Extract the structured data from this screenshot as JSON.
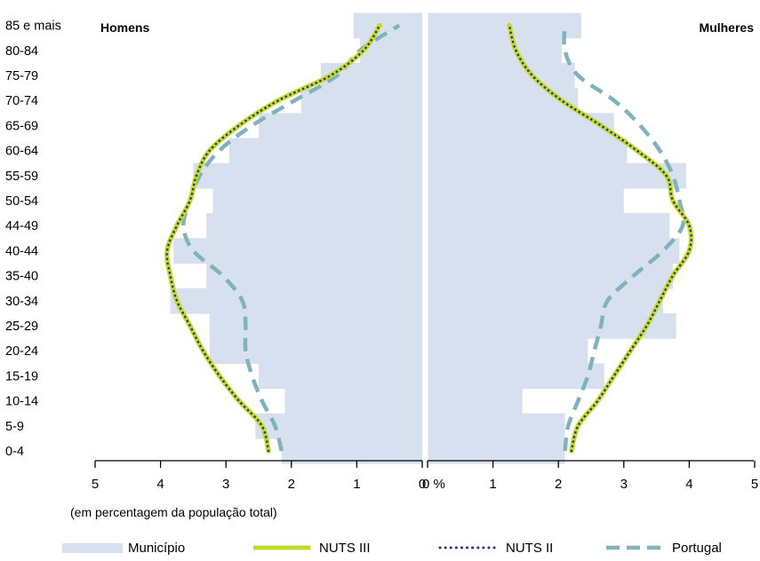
{
  "chart_data": {
    "type": "population-pyramid",
    "left_title": "Homens",
    "right_title": "Mulheres",
    "xlabel": "(em percentagem da população total)",
    "x_ticks_left": [
      "5",
      "4",
      "3",
      "2",
      "1",
      "0"
    ],
    "x_ticks_right": [
      "0 %",
      "1",
      "2",
      "3",
      "4",
      "5"
    ],
    "xlim": [
      0,
      5
    ],
    "categories": [
      "0-4",
      "5-9",
      "10-14",
      "15-19",
      "20-24",
      "25-29",
      "30-34",
      "35-40",
      "40-44",
      "44-49",
      "50-54",
      "55-59",
      "60-64",
      "65-69",
      "70-74",
      "75-79",
      "80-84",
      "85 e mais"
    ],
    "series": [
      {
        "name": "Município",
        "style": "bars",
        "color": "#d6e0ee",
        "men": [
          2.15,
          2.55,
          2.1,
          2.5,
          3.25,
          3.25,
          3.85,
          3.3,
          3.8,
          3.3,
          3.2,
          3.5,
          2.95,
          2.5,
          1.85,
          1.55,
          0.95,
          1.05
        ],
        "women": [
          2.1,
          2.1,
          1.45,
          2.7,
          2.45,
          3.8,
          3.6,
          3.75,
          3.85,
          3.7,
          3.0,
          3.95,
          3.05,
          2.85,
          2.3,
          2.25,
          2.05,
          2.35
        ]
      },
      {
        "name": "NUTS III",
        "style": "solid",
        "color": "#c6d82b",
        "men": [
          2.35,
          2.45,
          2.8,
          3.1,
          3.35,
          3.55,
          3.75,
          3.85,
          3.9,
          3.75,
          3.55,
          3.45,
          3.25,
          2.8,
          2.2,
          1.4,
          0.9,
          0.65
        ],
        "women": [
          2.2,
          2.3,
          2.6,
          2.85,
          3.1,
          3.35,
          3.55,
          3.75,
          4.0,
          4.0,
          3.75,
          3.65,
          3.2,
          2.65,
          2.05,
          1.6,
          1.35,
          1.25
        ]
      },
      {
        "name": "NUTS II",
        "style": "dotted",
        "color": "#1f3a78",
        "men": [
          2.35,
          2.45,
          2.8,
          3.1,
          3.35,
          3.55,
          3.75,
          3.85,
          3.9,
          3.75,
          3.55,
          3.45,
          3.25,
          2.8,
          2.2,
          1.4,
          0.9,
          0.65
        ],
        "women": [
          2.2,
          2.3,
          2.6,
          2.85,
          3.1,
          3.35,
          3.55,
          3.75,
          4.0,
          4.0,
          3.75,
          3.65,
          3.2,
          2.65,
          2.05,
          1.6,
          1.35,
          1.25
        ]
      },
      {
        "name": "Portugal",
        "style": "dashed",
        "color": "#7eb3bd",
        "men": [
          2.15,
          2.25,
          2.45,
          2.6,
          2.7,
          2.7,
          2.75,
          3.05,
          3.5,
          3.65,
          3.55,
          3.4,
          3.1,
          2.6,
          1.95,
          1.3,
          0.95,
          0.35
        ],
        "women": [
          2.1,
          2.15,
          2.3,
          2.45,
          2.55,
          2.65,
          2.75,
          3.15,
          3.6,
          3.9,
          3.85,
          3.75,
          3.55,
          3.25,
          2.85,
          2.3,
          2.1,
          2.1
        ]
      }
    ]
  }
}
